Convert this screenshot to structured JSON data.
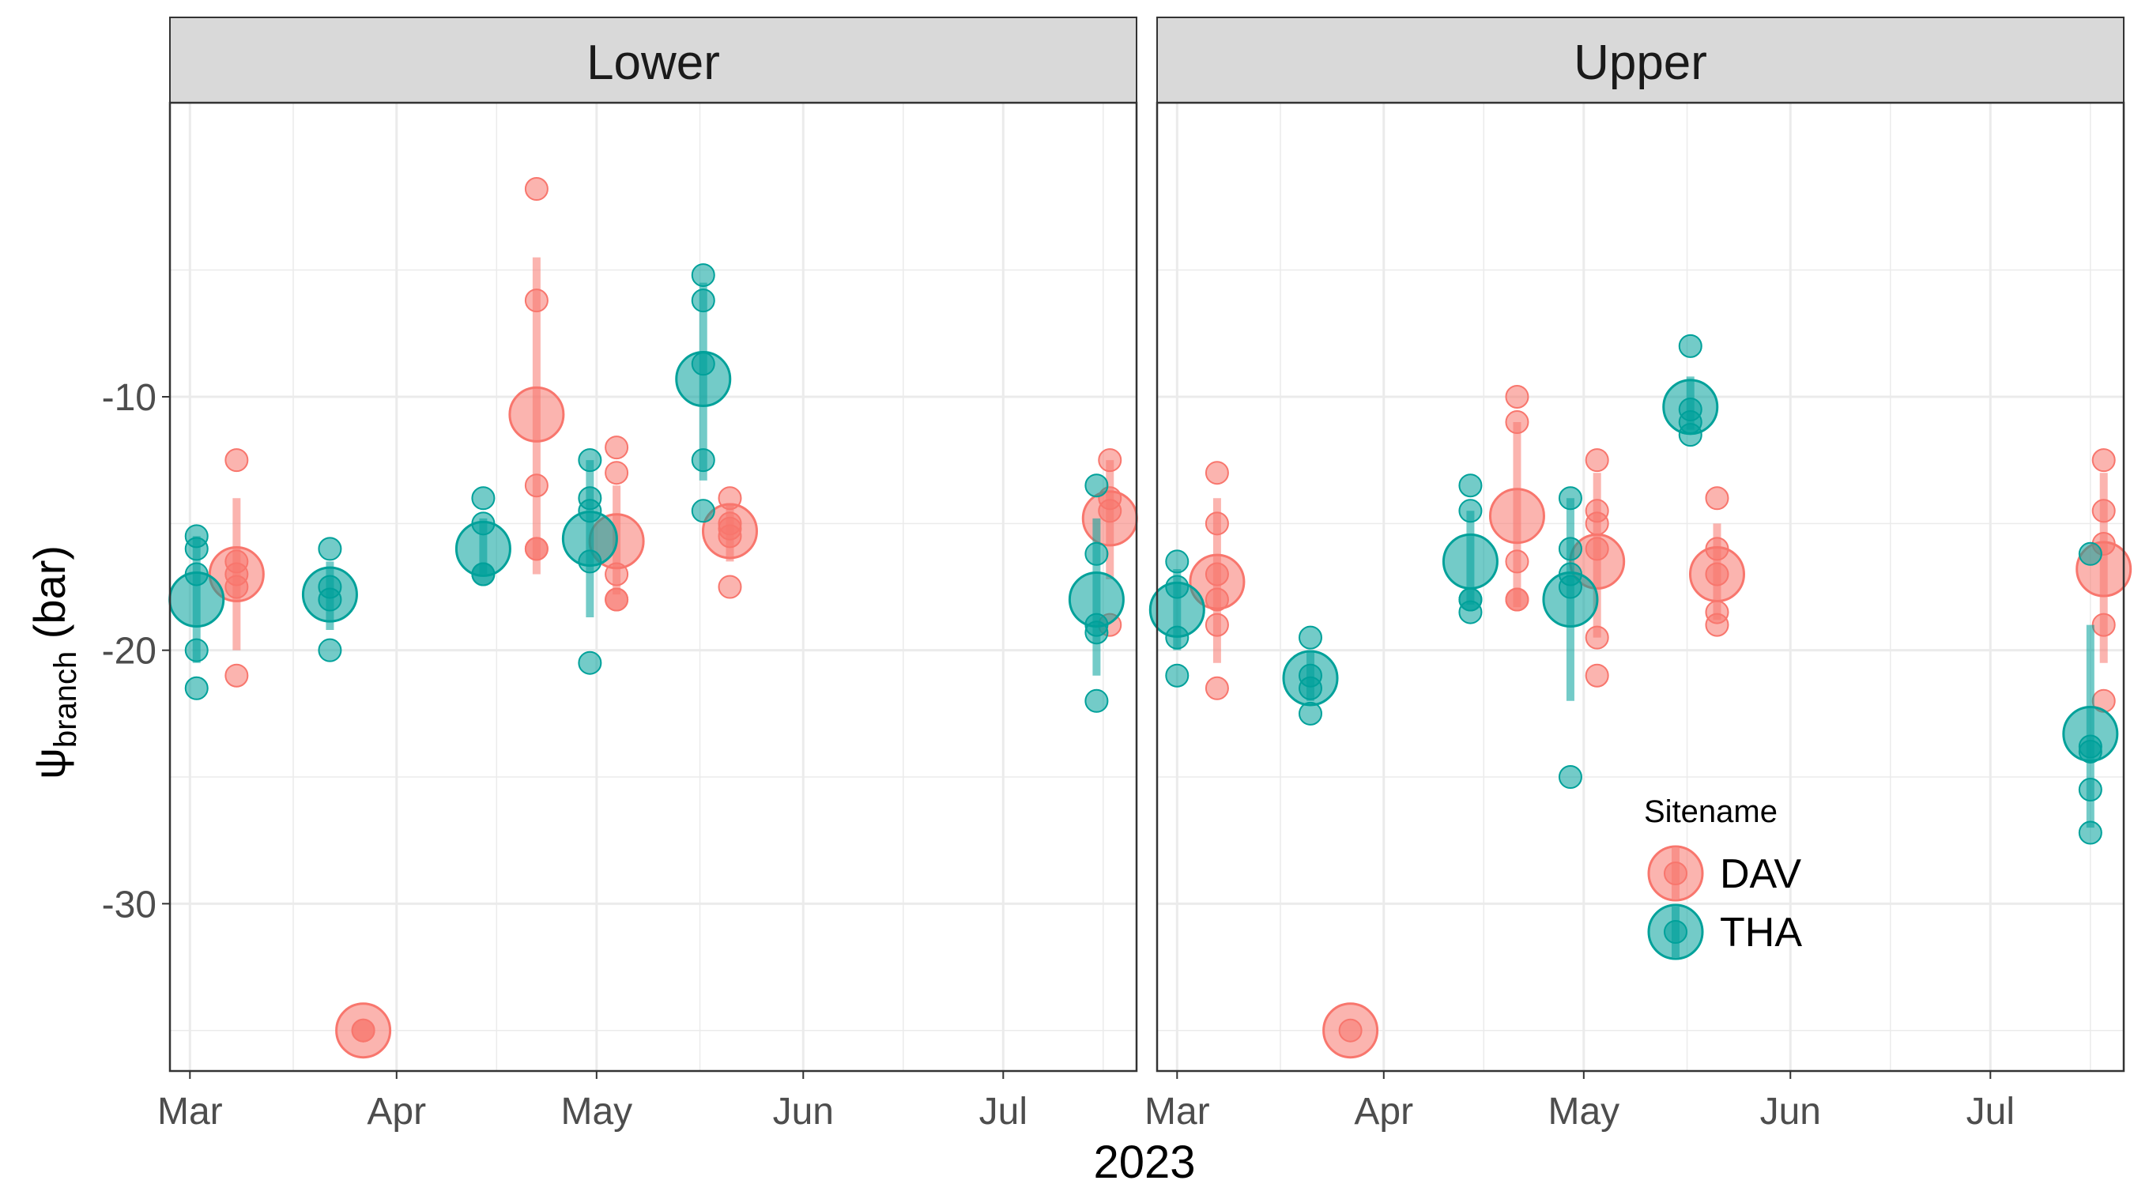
{
  "colors": {
    "DAV": "#F8766D",
    "THA": "#00A19A",
    "strip": "#D9D9D9",
    "grid": "#EBEBEB",
    "axis_text": "#4D4D4D"
  },
  "chart_data": {
    "type": "scatter",
    "xlabel": "2023",
    "ylabel_main": "ψ",
    "ylabel_sub": "branch",
    "ylabel_unit": " (bar)",
    "xlim": [
      "2023-02-26",
      "2023-07-21"
    ],
    "ylim": [
      -36.6,
      1.6
    ],
    "x_ticks": [
      {
        "date": "2023-03-01",
        "label": "Mar"
      },
      {
        "date": "2023-04-01",
        "label": "Apr"
      },
      {
        "date": "2023-05-01",
        "label": "May"
      },
      {
        "date": "2023-06-01",
        "label": "Jun"
      },
      {
        "date": "2023-07-01",
        "label": "Jul"
      }
    ],
    "y_ticks": [
      {
        "value": -10,
        "label": "-10"
      },
      {
        "value": -20,
        "label": "-20"
      },
      {
        "value": -30,
        "label": "-30"
      }
    ],
    "grid": true,
    "legend": {
      "title": "Sitename",
      "entries": [
        "DAV",
        "THA"
      ],
      "placement": "inside-bottom-right of Upper panel"
    },
    "facets": [
      {
        "name": "Lower",
        "series": [
          {
            "name": "DAV",
            "groups": [
              {
                "date": "2023-03-08",
                "mean": -17.0,
                "lo": -20.0,
                "hi": -14.0,
                "points": [
                  -12.5,
                  -16.5,
                  -17.0,
                  -17.5,
                  -21.0
                ]
              },
              {
                "date": "2023-03-27",
                "mean": -35.0,
                "lo": -35.0,
                "hi": -35.0,
                "points": [
                  -35.0,
                  -35.0
                ]
              },
              {
                "date": "2023-04-22",
                "mean": -10.7,
                "lo": -17.0,
                "hi": -4.5,
                "points": [
                  -1.8,
                  -6.2,
                  -13.5,
                  -16.0,
                  -16.0
                ]
              },
              {
                "date": "2023-05-04",
                "mean": -15.7,
                "lo": -17.8,
                "hi": -13.5,
                "points": [
                  -12.0,
                  -13.0,
                  -17.0,
                  -18.0,
                  -18.0
                ]
              },
              {
                "date": "2023-05-21",
                "mean": -15.3,
                "lo": -16.5,
                "hi": -14.2,
                "points": [
                  -14.0,
                  -15.0,
                  -15.2,
                  -15.5,
                  -17.5
                ]
              },
              {
                "date": "2023-07-17",
                "mean": -14.8,
                "lo": -17.2,
                "hi": -12.5,
                "points": [
                  -12.5,
                  -14.0,
                  -14.5,
                  -19.0
                ]
              }
            ]
          },
          {
            "name": "THA",
            "groups": [
              {
                "date": "2023-03-02",
                "mean": -18.0,
                "lo": -20.5,
                "hi": -15.5,
                "points": [
                  -15.5,
                  -16.0,
                  -17.0,
                  -20.0,
                  -21.5
                ]
              },
              {
                "date": "2023-03-22",
                "mean": -17.8,
                "lo": -19.2,
                "hi": -16.5,
                "points": [
                  -16.0,
                  -17.5,
                  -18.0,
                  -20.0
                ]
              },
              {
                "date": "2023-04-14",
                "mean": -16.0,
                "lo": -17.0,
                "hi": -14.8,
                "points": [
                  -14.0,
                  -15.0,
                  -17.0,
                  -17.0
                ]
              },
              {
                "date": "2023-04-30",
                "mean": -15.6,
                "lo": -18.7,
                "hi": -12.5,
                "points": [
                  -12.5,
                  -14.0,
                  -14.5,
                  -16.5,
                  -20.5
                ]
              },
              {
                "date": "2023-05-17",
                "mean": -9.3,
                "lo": -13.3,
                "hi": -5.5,
                "points": [
                  -5.2,
                  -6.2,
                  -8.7,
                  -12.5,
                  -14.5
                ]
              },
              {
                "date": "2023-07-15",
                "mean": -18.0,
                "lo": -21.0,
                "hi": -14.8,
                "points": [
                  -13.5,
                  -16.2,
                  -19.0,
                  -19.3,
                  -22.0
                ]
              }
            ]
          }
        ]
      },
      {
        "name": "Upper",
        "series": [
          {
            "name": "DAV",
            "groups": [
              {
                "date": "2023-03-07",
                "mean": -17.3,
                "lo": -20.5,
                "hi": -14.0,
                "points": [
                  -13.0,
                  -15.0,
                  -17.0,
                  -18.0,
                  -19.0,
                  -21.5
                ]
              },
              {
                "date": "2023-03-27",
                "mean": -35.0,
                "lo": -35.0,
                "hi": -35.0,
                "points": [
                  -35.0
                ]
              },
              {
                "date": "2023-04-21",
                "mean": -14.7,
                "lo": -18.3,
                "hi": -11.0,
                "points": [
                  -10.0,
                  -11.0,
                  -16.5,
                  -18.0,
                  -18.0
                ]
              },
              {
                "date": "2023-05-03",
                "mean": -16.5,
                "lo": -19.5,
                "hi": -13.0,
                "points": [
                  -12.5,
                  -14.5,
                  -15.0,
                  -16.0,
                  -19.5,
                  -21.0
                ]
              },
              {
                "date": "2023-05-21",
                "mean": -17.0,
                "lo": -18.8,
                "hi": -15.0,
                "points": [
                  -14.0,
                  -16.0,
                  -17.0,
                  -18.5,
                  -19.0
                ]
              },
              {
                "date": "2023-07-18",
                "mean": -16.8,
                "lo": -20.5,
                "hi": -13.0,
                "points": [
                  -12.5,
                  -14.5,
                  -15.8,
                  -19.0,
                  -22.0
                ]
              }
            ]
          },
          {
            "name": "THA",
            "groups": [
              {
                "date": "2023-03-01",
                "mean": -18.4,
                "lo": -20.0,
                "hi": -16.8,
                "points": [
                  -16.5,
                  -17.5,
                  -19.5,
                  -21.0
                ]
              },
              {
                "date": "2023-03-21",
                "mean": -21.1,
                "lo": -22.0,
                "hi": -20.0,
                "points": [
                  -19.5,
                  -21.0,
                  -21.5,
                  -22.5
                ]
              },
              {
                "date": "2023-04-14",
                "mean": -16.5,
                "lo": -18.2,
                "hi": -14.5,
                "points": [
                  -13.5,
                  -14.5,
                  -18.0,
                  -18.0,
                  -18.5
                ]
              },
              {
                "date": "2023-04-29",
                "mean": -18.0,
                "lo": -22.0,
                "hi": -14.0,
                "points": [
                  -14.0,
                  -16.0,
                  -17.0,
                  -17.5,
                  -25.0
                ]
              },
              {
                "date": "2023-05-17",
                "mean": -10.4,
                "lo": -11.3,
                "hi": -9.2,
                "points": [
                  -8.0,
                  -10.5,
                  -11.0,
                  -11.5
                ]
              },
              {
                "date": "2023-07-16",
                "mean": -23.3,
                "lo": -27.0,
                "hi": -19.0,
                "points": [
                  -16.2,
                  -23.8,
                  -24.0,
                  -25.5,
                  -27.2
                ]
              }
            ]
          }
        ]
      }
    ]
  }
}
